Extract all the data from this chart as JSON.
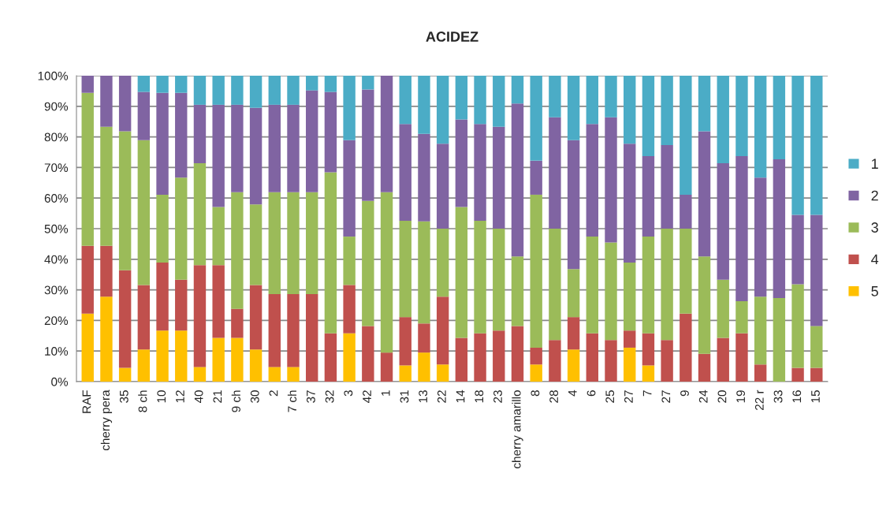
{
  "chart_data": {
    "type": "bar",
    "title": "ACIDEZ",
    "stacked": true,
    "grid": "y",
    "legend": "right",
    "categories": [
      "RAF",
      "cherry pera",
      "35",
      "8 ch",
      "10",
      "12",
      "40",
      "21",
      "9 ch",
      "30",
      "2",
      "7 ch",
      "37",
      "32",
      "3",
      "42",
      "1",
      "31",
      "13",
      "22",
      "14",
      "18",
      "23",
      "cherry amarillo",
      "8",
      "28",
      "4",
      "6",
      "25",
      "27",
      "7",
      "27",
      "9",
      "24",
      "20",
      "19",
      "22 r",
      "33",
      "16",
      "15"
    ],
    "ylim": [
      0,
      100
    ],
    "yticks": [
      {
        "value": 0,
        "label": "0%"
      },
      {
        "value": 10,
        "label": "10%"
      },
      {
        "value": 20,
        "label": "20%"
      },
      {
        "value": 30,
        "label": "30%"
      },
      {
        "value": 40,
        "label": "40%"
      },
      {
        "value": 50,
        "label": "50%"
      },
      {
        "value": 60,
        "label": "60%"
      },
      {
        "value": 70,
        "label": "70%"
      },
      {
        "value": 80,
        "label": "80%"
      },
      {
        "value": 90,
        "label": "90%"
      },
      {
        "value": 100,
        "label": "100%"
      }
    ],
    "series": [
      {
        "name": "5",
        "color": "#ffc000",
        "values": [
          22.2,
          27.8,
          4.5,
          10.5,
          16.7,
          16.7,
          4.8,
          14.3,
          14.3,
          10.5,
          4.8,
          4.8,
          0,
          0,
          15.8,
          0,
          0,
          5.3,
          9.5,
          5.6,
          0,
          0,
          0,
          0,
          5.6,
          0,
          10.5,
          0,
          0,
          11.1,
          5.3,
          0,
          0,
          0,
          0,
          0,
          0,
          0,
          0,
          0
        ]
      },
      {
        "name": "4",
        "color": "#c0504d",
        "values": [
          22.2,
          16.6,
          31.9,
          21.1,
          22.2,
          16.6,
          33.3,
          23.8,
          9.5,
          21.1,
          23.8,
          23.8,
          28.6,
          15.8,
          15.8,
          18.2,
          9.5,
          15.8,
          9.5,
          22.2,
          14.3,
          15.8,
          16.7,
          18.2,
          5.5,
          13.6,
          10.6,
          15.8,
          13.6,
          5.6,
          10.5,
          13.6,
          22.2,
          9.1,
          14.3,
          15.8,
          5.6,
          0,
          4.5,
          4.5
        ]
      },
      {
        "name": "3",
        "color": "#9bbb59",
        "values": [
          50,
          38.9,
          45.4,
          47.3,
          22.2,
          33.4,
          33.3,
          19,
          38.1,
          26.3,
          33.3,
          33.3,
          33.3,
          52.6,
          15.8,
          40.9,
          52.4,
          31.5,
          33.4,
          22.2,
          42.8,
          36.8,
          33.3,
          22.7,
          50,
          36.4,
          15.7,
          31.6,
          31.9,
          22.2,
          31.6,
          36.4,
          27.8,
          31.8,
          19,
          10.5,
          22.2,
          27.3,
          27.3,
          13.7
        ]
      },
      {
        "name": "2",
        "color": "#8064a2",
        "values": [
          5.6,
          16.7,
          18.2,
          15.8,
          33.3,
          27.7,
          19.1,
          33.4,
          28.6,
          31.6,
          28.6,
          28.6,
          33.3,
          26.3,
          31.5,
          36.4,
          38.1,
          31.6,
          28.6,
          27.8,
          28.6,
          31.6,
          33.3,
          50,
          11.1,
          36.4,
          42.1,
          36.8,
          40.9,
          38.9,
          26.3,
          27.3,
          11.1,
          40.9,
          38.1,
          47.4,
          38.9,
          45.4,
          22.7,
          36.3
        ]
      },
      {
        "name": "1",
        "color": "#4bacc6",
        "values": [
          0,
          0,
          0,
          5.3,
          5.6,
          5.6,
          9.5,
          9.5,
          9.5,
          10.5,
          9.5,
          9.5,
          4.8,
          5.3,
          21.1,
          4.5,
          0,
          15.8,
          19,
          22.2,
          14.3,
          15.8,
          16.7,
          9.1,
          27.8,
          13.6,
          21.1,
          15.8,
          13.6,
          22.2,
          26.3,
          22.7,
          38.9,
          18.2,
          28.6,
          26.3,
          33.3,
          27.3,
          45.5,
          45.5
        ]
      }
    ]
  }
}
